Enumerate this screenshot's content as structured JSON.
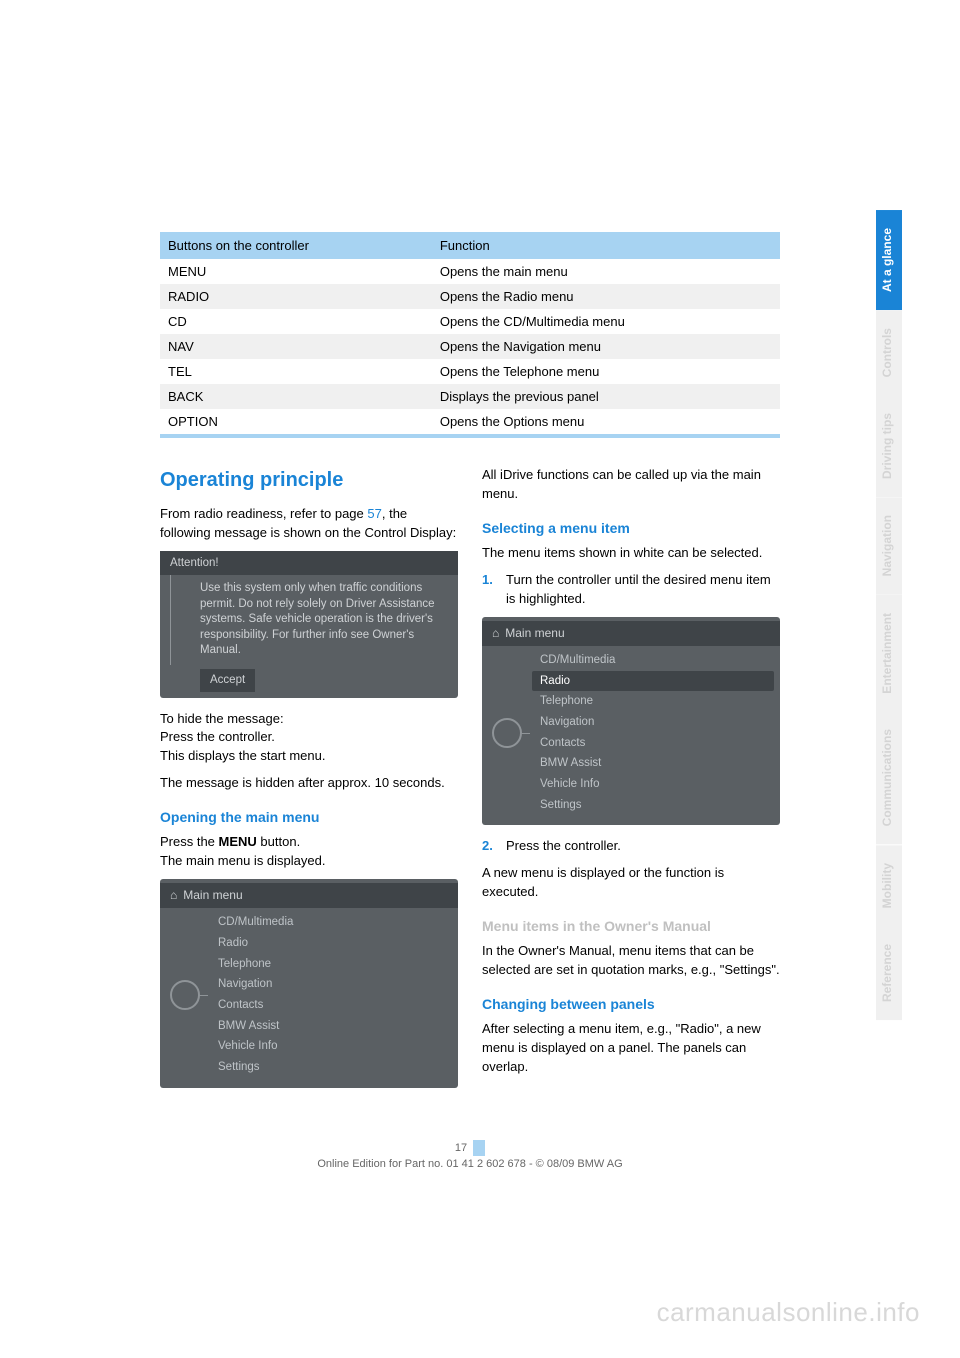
{
  "colors": {
    "accent_blue": "#1a84d6",
    "table_header": "#a7d3f2",
    "tab_inactive_bg": "#f0f0f0",
    "tab_inactive_text": "#d4d4d4",
    "idrive_bg": "#5a5f63",
    "idrive_dark": "#3f4448",
    "idrive_text": "#cfd2d5"
  },
  "table": {
    "header_left": "Buttons on the controller",
    "header_right": "Function",
    "rows": [
      {
        "btn": "MENU",
        "fn": "Opens the main menu"
      },
      {
        "btn": "RADIO",
        "fn": "Opens the Radio menu"
      },
      {
        "btn": "CD",
        "fn": "Opens the CD/Multimedia menu"
      },
      {
        "btn": "NAV",
        "fn": "Opens the Navigation menu"
      },
      {
        "btn": "TEL",
        "fn": "Opens the Telephone menu"
      },
      {
        "btn": "BACK",
        "fn": "Displays the previous panel"
      },
      {
        "btn": "OPTION",
        "fn": "Opens the Options menu"
      }
    ]
  },
  "left": {
    "h2": "Operating principle",
    "intro_a": "From radio readiness, refer to page ",
    "intro_link": "57",
    "intro_b": ", the following message is shown on the Control Display:",
    "attention_title": "Attention!",
    "attention_msg": "Use this system only when traffic conditions permit. Do not rely solely on Driver Assistance systems. Safe vehicle operation is the driver's responsibility. For further info see Owner's Manual.",
    "attention_accept": "Accept",
    "hide_msg": "To hide the message:\nPress the controller.\nThis displays the start menu.",
    "hidden_after": "The message is hidden after approx. 10 seconds.",
    "open_menu_h": "Opening the main menu",
    "open_menu_p1": "Press the ",
    "open_menu_bold": "MENU",
    "open_menu_p2": " button.\nThe main menu is displayed.",
    "menu_title": "Main menu",
    "menu_items": [
      "CD/Multimedia",
      "Radio",
      "Telephone",
      "Navigation",
      "Contacts",
      "BMW Assist",
      "Vehicle Info",
      "Settings"
    ]
  },
  "right": {
    "all_funcs": "All iDrive functions can be called up via the main menu.",
    "select_h": "Selecting a menu item",
    "select_p": "The menu items shown in white can be selected.",
    "step1_num": "1.",
    "step1": "Turn the controller until the desired menu item is highlighted.",
    "menu_title": "Main menu",
    "menu_items": [
      "CD/Multimedia",
      "Radio",
      "Telephone",
      "Navigation",
      "Contacts",
      "BMW Assist",
      "Vehicle Info",
      "Settings"
    ],
    "menu_highlight_index": 1,
    "step2_num": "2.",
    "step2": "Press the controller.",
    "after": "A new menu is displayed or the function is executed.",
    "owner_h": "Menu items in the Owner's Manual",
    "owner_p": "In the Owner's Manual, menu items that can be selected are set in quotation marks, e.g., \"Settings\".",
    "change_h": "Changing between panels",
    "change_p": "After selecting a menu item, e.g., \"Radio\", a new menu is displayed on a panel. The panels can overlap."
  },
  "tabs": [
    {
      "label": "At a glance",
      "active": true
    },
    {
      "label": "Controls",
      "active": false
    },
    {
      "label": "Driving tips",
      "active": false
    },
    {
      "label": "Navigation",
      "active": false
    },
    {
      "label": "Entertainment",
      "active": false
    },
    {
      "label": "Communications",
      "active": false
    },
    {
      "label": "Mobility",
      "active": false
    },
    {
      "label": "Reference",
      "active": false
    }
  ],
  "footer": {
    "page": "17",
    "line": "Online Edition for Part no. 01 41 2 602 678 - © 08/09 BMW AG"
  },
  "watermark": "carmanualsonline.info"
}
